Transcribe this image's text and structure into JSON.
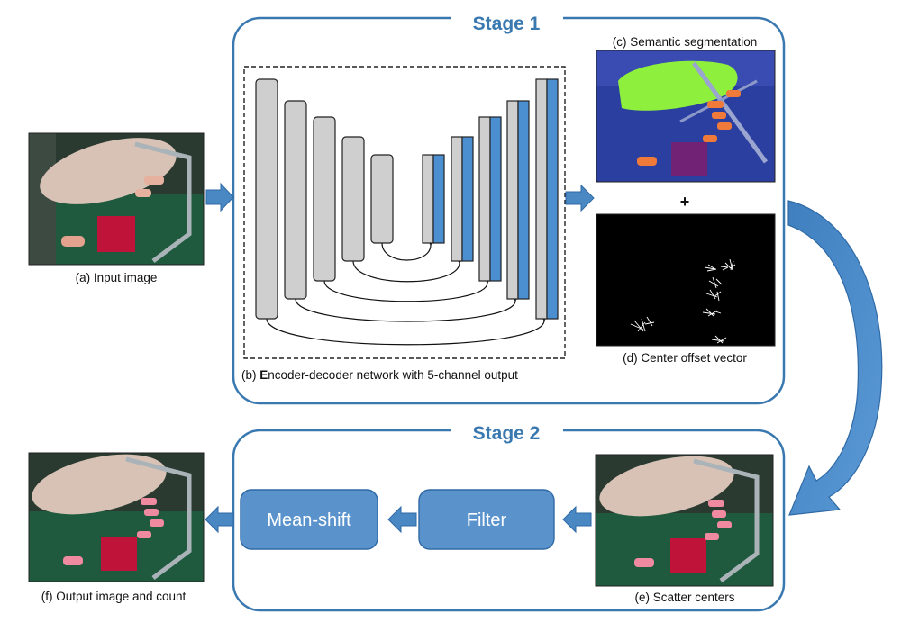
{
  "stage1": {
    "title": "Stage 1"
  },
  "stage2": {
    "title": "Stage 2"
  },
  "captions": {
    "input": "(a) Input image",
    "network_prefix": "(b) ",
    "network_bold": "E",
    "network_rest": "ncoder-decoder network with 5-channel output",
    "segmentation": "(c) Semantic segmentation",
    "offset": "(d) Center offset vector",
    "scatter": "(e) Scatter centers",
    "output": "(f) Output image and count"
  },
  "plus": "+",
  "boxes": {
    "filter": "Filter",
    "meanshift": "Mean-shift"
  },
  "colors": {
    "accent": "#3a78b0",
    "arrow": "#4a88c4",
    "box_fill": "#5a93cc",
    "encoder_grey": "#cfcfcf",
    "decoder_blue": "#4b8fd0",
    "segmentation_green": "#8ef03c",
    "segmentation_orange": "#f07a3a"
  }
}
